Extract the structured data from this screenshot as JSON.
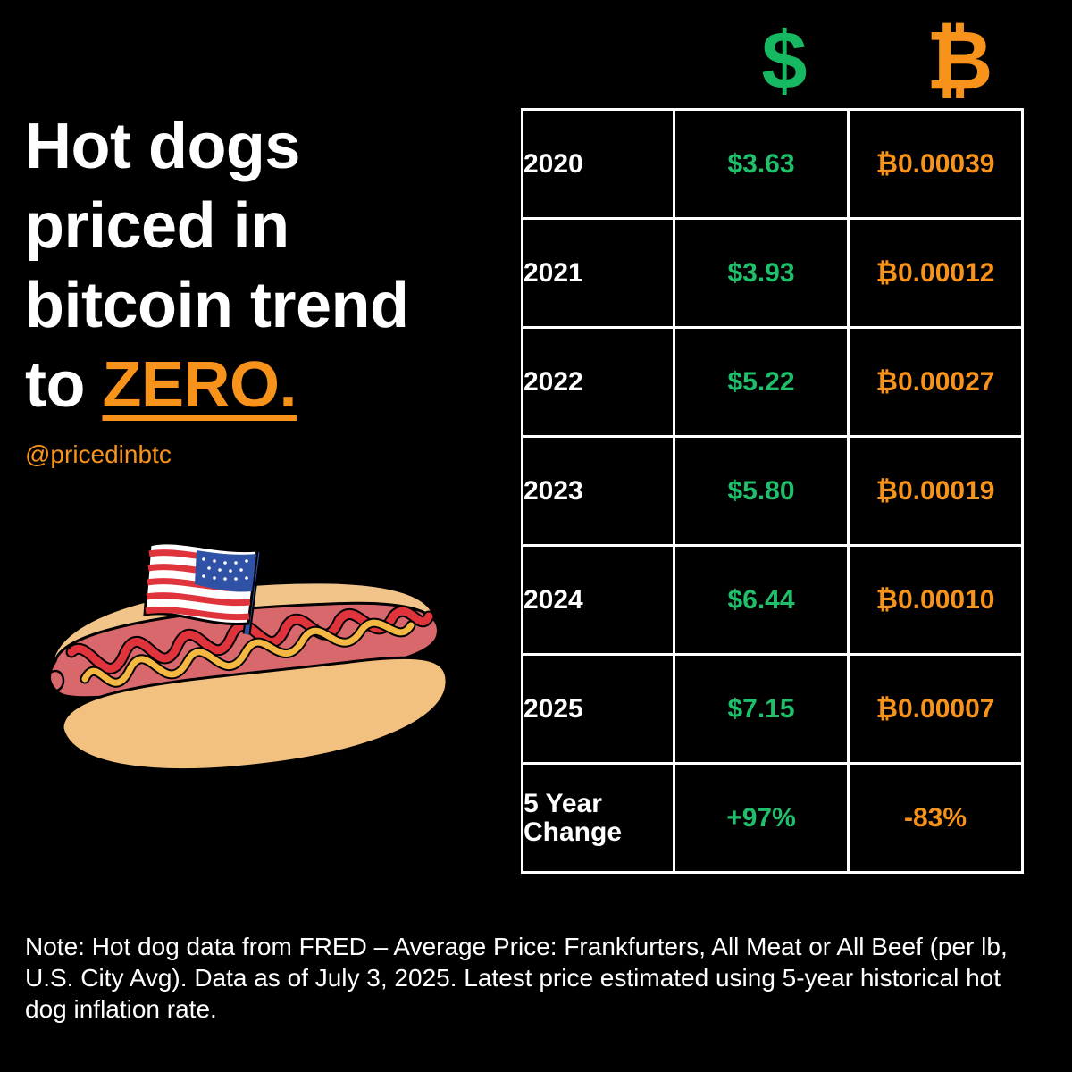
{
  "headline": {
    "line1": "Hot dogs",
    "line2": "priced in",
    "line3": "bitcoin trend",
    "line4_prefix": "to ",
    "line4_emphasis": "ZERO."
  },
  "handle": "@pricedinbtc",
  "column_icons": {
    "usd": "$",
    "btc": "₿"
  },
  "colors": {
    "usd": "#1fbf6b",
    "btc": "#F7931A",
    "background": "#000000",
    "text": "#ffffff"
  },
  "table": {
    "rows": [
      {
        "year": "2020",
        "usd": "$3.63",
        "btc": "₿0.00039"
      },
      {
        "year": "2021",
        "usd": "$3.93",
        "btc": "₿0.00012"
      },
      {
        "year": "2022",
        "usd": "$5.22",
        "btc": "₿0.00027"
      },
      {
        "year": "2023",
        "usd": "$5.80",
        "btc": "₿0.00019"
      },
      {
        "year": "2024",
        "usd": "$6.44",
        "btc": "₿0.00010"
      },
      {
        "year": "2025",
        "usd": "$7.15",
        "btc": "₿0.00007"
      }
    ],
    "change": {
      "label_line1": "5 Year",
      "label_line2": "Change",
      "usd": "+97%",
      "btc": "-83%"
    }
  },
  "note": "Note: Hot dog data from FRED – Average Price: Frankfurters, All Meat or All Beef (per lb, U.S. City Avg). Data as of July 3, 2025. Latest price estimated using 5-year historical hot dog inflation rate."
}
